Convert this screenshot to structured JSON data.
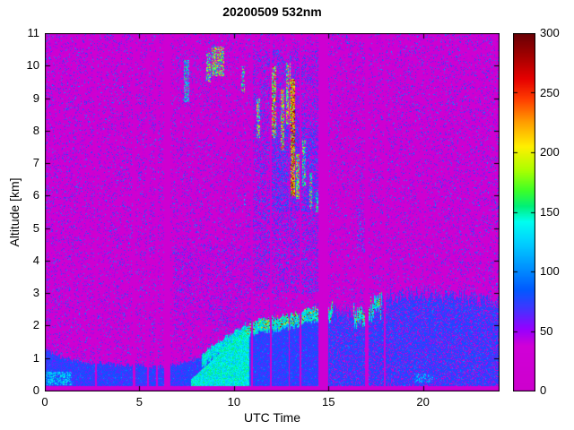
{
  "chart_data": {
    "type": "heatmap",
    "title": "20200509 532nm",
    "xlabel": "UTC Time",
    "ylabel": "Altitude [km]",
    "xlim": [
      0,
      24
    ],
    "ylim": [
      0,
      11
    ],
    "xticks": [
      0,
      5,
      10,
      15,
      20
    ],
    "yticks": [
      0,
      1,
      2,
      3,
      4,
      5,
      6,
      7,
      8,
      9,
      10,
      11
    ],
    "colorbar": {
      "min": 0,
      "max": 300,
      "ticks": [
        0,
        50,
        100,
        150,
        200,
        250,
        300
      ]
    },
    "colormap_stops": [
      [
        0,
        [
          205,
          0,
          205
        ]
      ],
      [
        38,
        [
          208,
          0,
          215
        ]
      ],
      [
        52,
        [
          150,
          0,
          255
        ]
      ],
      [
        68,
        [
          70,
          50,
          255
        ]
      ],
      [
        85,
        [
          0,
          90,
          255
        ]
      ],
      [
        105,
        [
          0,
          150,
          255
        ]
      ],
      [
        125,
        [
          0,
          210,
          255
        ]
      ],
      [
        142,
        [
          0,
          255,
          240
        ]
      ],
      [
        155,
        [
          0,
          240,
          120
        ]
      ],
      [
        168,
        [
          60,
          255,
          40
        ]
      ],
      [
        185,
        [
          170,
          255,
          0
        ]
      ],
      [
        205,
        [
          255,
          240,
          0
        ]
      ],
      [
        225,
        [
          255,
          160,
          0
        ]
      ],
      [
        245,
        [
          255,
          60,
          0
        ]
      ],
      [
        262,
        [
          230,
          0,
          0
        ]
      ],
      [
        282,
        [
          160,
          0,
          0
        ]
      ],
      [
        300,
        [
          105,
          0,
          5
        ]
      ]
    ],
    "background": {
      "base": 6,
      "spread": 26,
      "speckle_p": 0.13,
      "speckle_min": 35,
      "speckle_amp": 75
    },
    "bottom_strip": {
      "top_km": 0.16,
      "value": 16,
      "amp": 10
    },
    "boundary_layer": {
      "times": [
        0,
        1,
        2,
        3,
        4,
        5,
        6,
        7,
        8,
        9,
        10,
        11,
        12,
        13,
        14,
        15,
        16,
        17,
        18,
        19,
        20,
        21,
        22,
        23,
        24
      ],
      "tops": [
        1.3,
        1.0,
        0.9,
        0.85,
        0.8,
        0.8,
        0.75,
        0.8,
        1.0,
        1.4,
        1.8,
        2.1,
        2.2,
        2.3,
        2.5,
        2.5,
        2.4,
        2.6,
        2.8,
        3.0,
        3.0,
        2.9,
        2.9,
        2.8,
        2.8
      ],
      "fill_value": 58,
      "fill_amp": 30,
      "diffuse_after_t": 15,
      "diffuse_p": 0.8
    },
    "surface_wedge": {
      "t0": 7.7,
      "t1": 10.8,
      "top0": 0.35,
      "top1": 2.0,
      "value": 115,
      "amp": 45
    },
    "bl_cap": {
      "ranges": [
        [
          8.3,
          15.2
        ],
        [
          16.3,
          17.8
        ]
      ],
      "value": 105,
      "amp": 55,
      "speck_p": 0.22,
      "speck_value": 170,
      "speck_amp": 130,
      "speck_ranges": [
        [
          10.6,
          15.2
        ],
        [
          16.3,
          17.8
        ]
      ]
    },
    "gaps": [
      {
        "t": 2.68,
        "w": 0.14
      },
      {
        "t": 4.68,
        "w": 0.14
      },
      {
        "t": 5.42,
        "w": 0.12
      },
      {
        "t": 5.92,
        "w": 0.1
      },
      {
        "t": 6.45,
        "w": 0.32
      },
      {
        "t": 10.95,
        "w": 0.1
      },
      {
        "t": 11.93,
        "w": 0.1
      },
      {
        "t": 12.9,
        "w": 0.08
      },
      {
        "t": 13.5,
        "w": 0.08
      },
      {
        "t": 14.7,
        "w": 0.5
      },
      {
        "t": 17.0,
        "w": 0.16
      },
      {
        "t": 17.95,
        "w": 0.12
      }
    ],
    "gap_value": 14,
    "gap_amp": 10,
    "clouds": [
      {
        "t0": 0.0,
        "t1": 1.4,
        "a0": 0.18,
        "a1": 0.6,
        "v": 115,
        "amp": 35,
        "p": 0.7
      },
      {
        "t0": 19.5,
        "t1": 20.5,
        "a0": 0.25,
        "a1": 0.55,
        "v": 105,
        "amp": 30,
        "p": 0.5
      },
      {
        "t0": 7.35,
        "t1": 7.6,
        "a0": 8.9,
        "a1": 10.2,
        "v": 130,
        "amp": 40,
        "p": 0.55
      },
      {
        "t0": 8.5,
        "t1": 8.75,
        "a0": 9.5,
        "a1": 10.4,
        "v": 150,
        "amp": 50,
        "p": 0.55
      },
      {
        "t0": 8.8,
        "t1": 9.45,
        "a0": 9.7,
        "a1": 10.6,
        "v": 170,
        "amp": 70,
        "p": 0.6
      },
      {
        "t0": 10.35,
        "t1": 10.55,
        "a0": 9.2,
        "a1": 10.0,
        "v": 140,
        "amp": 50,
        "p": 0.55
      },
      {
        "t0": 11.15,
        "t1": 11.35,
        "a0": 7.8,
        "a1": 9.0,
        "v": 160,
        "amp": 60,
        "p": 0.55
      },
      {
        "t0": 12.0,
        "t1": 12.2,
        "a0": 7.8,
        "a1": 10.0,
        "v": 200,
        "amp": 80,
        "p": 0.65
      },
      {
        "t0": 12.45,
        "t1": 12.62,
        "a0": 7.4,
        "a1": 9.3,
        "v": 190,
        "amp": 80,
        "p": 0.65
      },
      {
        "t0": 12.75,
        "t1": 12.95,
        "a0": 8.2,
        "a1": 10.1,
        "v": 170,
        "amp": 70,
        "p": 0.6
      },
      {
        "t0": 12.98,
        "t1": 13.2,
        "a0": 6.0,
        "a1": 9.6,
        "v": 230,
        "amp": 70,
        "p": 0.75
      },
      {
        "t0": 13.25,
        "t1": 13.45,
        "a0": 5.9,
        "a1": 7.3,
        "v": 180,
        "amp": 70,
        "p": 0.65
      },
      {
        "t0": 13.6,
        "t1": 13.78,
        "a0": 6.3,
        "a1": 7.7,
        "v": 150,
        "amp": 60,
        "p": 0.55
      },
      {
        "t0": 13.95,
        "t1": 14.12,
        "a0": 5.6,
        "a1": 6.7,
        "v": 150,
        "amp": 60,
        "p": 0.55
      },
      {
        "t0": 14.3,
        "t1": 14.45,
        "a0": 5.5,
        "a1": 6.2,
        "v": 130,
        "amp": 40,
        "p": 0.5
      },
      {
        "t0": 16.5,
        "t1": 17.0,
        "a0": 4.3,
        "a1": 5.6,
        "v": 80,
        "amp": 40,
        "p": 0.22
      },
      {
        "t0": 10.5,
        "t1": 10.62,
        "a0": 5.7,
        "a1": 6.1,
        "v": 100,
        "amp": 30,
        "p": 0.5
      }
    ],
    "haze": [
      {
        "t0": 11.0,
        "t1": 14.6,
        "a0": 3.0,
        "a1": 10.5,
        "p": 0.22,
        "value": 45,
        "amp": 55
      },
      {
        "t0": 12.0,
        "t1": 14.5,
        "a0": 5.5,
        "a1": 8.2,
        "p": 0.3,
        "value": 55,
        "amp": 45
      },
      {
        "t0": 6.8,
        "t1": 10.9,
        "a0": 2.0,
        "a1": 4.5,
        "p": 0.12,
        "value": 40,
        "amp": 40
      }
    ]
  }
}
